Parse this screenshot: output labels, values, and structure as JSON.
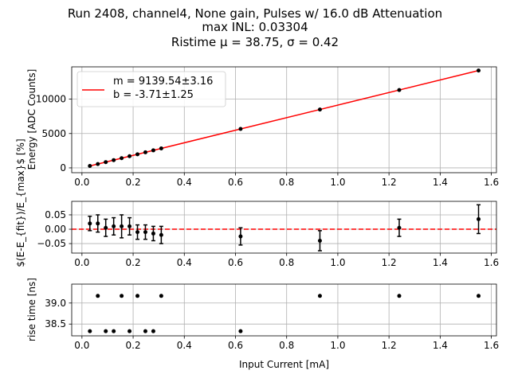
{
  "title_lines": [
    "Run 2408, channel4, None gain, Pulses w/ 16.0 dB Attenuation",
    "max INL: 0.03304",
    "Ristime μ = 38.75, σ = 0.42"
  ],
  "chart_data": [
    {
      "type": "scatter",
      "panel": "energy",
      "xlabel": "",
      "ylabel": "Energy [ADC Counts]",
      "xlim": [
        -0.04,
        1.62
      ],
      "ylim": [
        -700,
        14700
      ],
      "xticks": [
        0.0,
        0.2,
        0.4,
        0.6,
        0.8,
        1.0,
        1.2,
        1.4,
        1.6
      ],
      "xticklabels": [
        "0.0",
        "0.2",
        "0.4",
        "0.6",
        "0.8",
        "1.0",
        "1.2",
        "1.4",
        "1.6"
      ],
      "yticks": [
        0,
        5000,
        10000
      ],
      "yticklabels": [
        "0",
        "5000",
        "10000"
      ],
      "grid": true,
      "x": [
        0.031,
        0.062,
        0.093,
        0.124,
        0.155,
        0.186,
        0.217,
        0.248,
        0.279,
        0.31,
        0.62,
        0.93,
        1.24,
        1.55
      ],
      "y": [
        280,
        560,
        840,
        1130,
        1415,
        1700,
        1980,
        2265,
        2550,
        2830,
        5665,
        8495,
        11330,
        14165
      ],
      "fit": {
        "slope": 9139.54,
        "intercept": -3.71,
        "color": "#ff0000"
      },
      "legend": {
        "position": "upper-left",
        "lines": [
          "m = 9139.54±3.16",
          "b = -3.71±1.25"
        ]
      }
    },
    {
      "type": "scatter",
      "panel": "residual",
      "xlabel": "",
      "ylabel": "$(E-E_{fit})/E_{max}$ [%]",
      "xlim": [
        -0.04,
        1.62
      ],
      "ylim": [
        -0.083,
        0.097
      ],
      "xticks": [
        0.0,
        0.2,
        0.4,
        0.6,
        0.8,
        1.0,
        1.2,
        1.4,
        1.6
      ],
      "xticklabels": [
        "0.0",
        "0.2",
        "0.4",
        "0.6",
        "0.8",
        "1.0",
        "1.2",
        "1.4",
        "1.6"
      ],
      "yticks": [
        -0.05,
        0.0,
        0.05
      ],
      "yticklabels": [
        "−0.05",
        "0.00",
        "0.05"
      ],
      "grid": true,
      "x": [
        0.031,
        0.062,
        0.093,
        0.124,
        0.155,
        0.186,
        0.217,
        0.248,
        0.279,
        0.31,
        0.62,
        0.93,
        1.24,
        1.55
      ],
      "y": [
        0.02,
        0.02,
        0.005,
        0.01,
        0.01,
        0.01,
        -0.01,
        -0.01,
        -0.015,
        -0.02,
        -0.025,
        -0.04,
        0.005,
        0.035
      ],
      "yerr": [
        0.025,
        0.03,
        0.03,
        0.03,
        0.04,
        0.03,
        0.025,
        0.025,
        0.025,
        0.03,
        0.03,
        0.035,
        0.03,
        0.05
      ],
      "refline": {
        "y": 0.0,
        "color": "#ff0000",
        "style": "dashed"
      }
    },
    {
      "type": "scatter",
      "panel": "risetime",
      "xlabel": "Input Current [mA]",
      "ylabel": "rise time [ns]",
      "xlim": [
        -0.04,
        1.62
      ],
      "ylim": [
        38.22,
        39.45
      ],
      "xticks": [
        0.0,
        0.2,
        0.4,
        0.6,
        0.8,
        1.0,
        1.2,
        1.4,
        1.6
      ],
      "xticklabels": [
        "0.0",
        "0.2",
        "0.4",
        "0.6",
        "0.8",
        "1.0",
        "1.2",
        "1.4",
        "1.6"
      ],
      "yticks": [
        38.5,
        39.0
      ],
      "yticklabels": [
        "38.5",
        "39.0"
      ],
      "grid": true,
      "x": [
        0.031,
        0.062,
        0.093,
        0.124,
        0.155,
        0.186,
        0.217,
        0.248,
        0.279,
        0.31,
        0.62,
        0.93,
        1.24,
        1.55
      ],
      "y": [
        38.33,
        39.17,
        38.33,
        38.33,
        39.17,
        38.33,
        39.17,
        38.33,
        38.33,
        39.17,
        38.33,
        39.17,
        39.17,
        39.17
      ]
    }
  ]
}
